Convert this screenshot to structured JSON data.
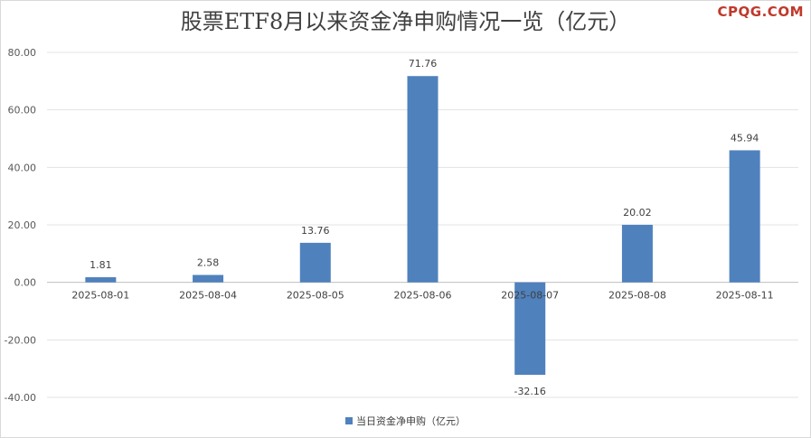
{
  "title": "股票ETF8月以来资金净申购情况一览（亿元）",
  "watermark": "CPQG.COM",
  "chart_data": {
    "type": "bar",
    "title": "股票ETF8月以来资金净申购情况一览（亿元）",
    "categories": [
      "2025-08-01",
      "2025-08-04",
      "2025-08-05",
      "2025-08-06",
      "2025-08-07",
      "2025-08-08",
      "2025-08-11"
    ],
    "series": [
      {
        "name": "当日资金净申购（亿元）",
        "values": [
          1.81,
          2.58,
          13.76,
          71.76,
          -32.16,
          20.02,
          45.94
        ],
        "color": "#4f81bd"
      }
    ],
    "data_labels": [
      "1.81",
      "2.58",
      "13.76",
      "71.76",
      "-32.16",
      "20.02",
      "45.94"
    ],
    "y_ticks": [
      "80.00",
      "60.00",
      "40.00",
      "20.00",
      "0.00",
      "-20.00",
      "-40.00"
    ],
    "ylim": [
      -40,
      80
    ],
    "grid": true,
    "legend_position": "bottom",
    "xlabel": "",
    "ylabel": ""
  }
}
